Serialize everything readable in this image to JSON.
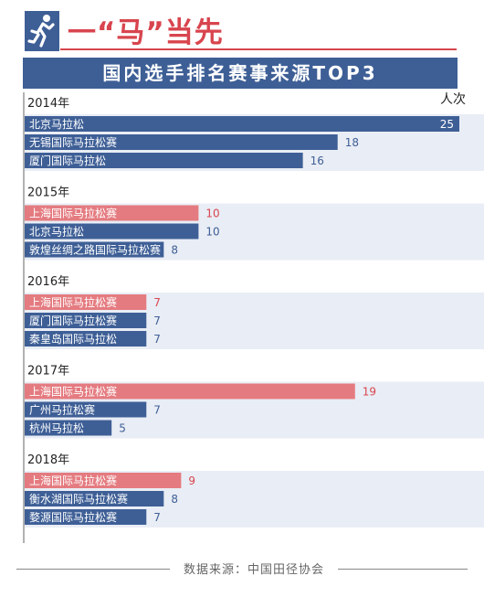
{
  "header": {
    "title": "一“马”当先",
    "icon": "runner-icon"
  },
  "banner": {
    "title": "国内选手排名赛事来源TOP3"
  },
  "footer": {
    "source": "数据来源：中国田径协会"
  },
  "colors": {
    "primary": "#3e5f96",
    "highlight": "#d8454e",
    "highlight_bar": "#e47b80",
    "band": "#e9edf5",
    "axis": "#666666"
  },
  "chart_data": {
    "type": "bar",
    "orientation": "horizontal",
    "unit_label": "人次",
    "xlim": [
      0,
      25
    ],
    "grid": false,
    "groups": [
      {
        "year": "2014年",
        "items": [
          {
            "label": "北京马拉松",
            "value": 25,
            "highlight": false
          },
          {
            "label": "无锡国际马拉松赛",
            "value": 18,
            "highlight": false
          },
          {
            "label": "厦门国际马拉松",
            "value": 16,
            "highlight": false
          }
        ]
      },
      {
        "year": "2015年",
        "items": [
          {
            "label": "上海国际马拉松赛",
            "value": 10,
            "highlight": true
          },
          {
            "label": "北京马拉松",
            "value": 10,
            "highlight": false
          },
          {
            "label": "敦煌丝绸之路国际马拉松赛",
            "value": 8,
            "highlight": false
          }
        ]
      },
      {
        "year": "2016年",
        "items": [
          {
            "label": "上海国际马拉松赛",
            "value": 7,
            "highlight": true
          },
          {
            "label": "厦门国际马拉松赛",
            "value": 7,
            "highlight": false
          },
          {
            "label": "秦皇岛国际马拉松",
            "value": 7,
            "highlight": false
          }
        ]
      },
      {
        "year": "2017年",
        "items": [
          {
            "label": "上海国际马拉松赛",
            "value": 19,
            "highlight": true
          },
          {
            "label": "广州马拉松赛",
            "value": 7,
            "highlight": false
          },
          {
            "label": "杭州马拉松",
            "value": 5,
            "highlight": false
          }
        ]
      },
      {
        "year": "2018年",
        "items": [
          {
            "label": "上海国际马拉松赛",
            "value": 9,
            "highlight": true
          },
          {
            "label": "衡水湖国际马拉松赛",
            "value": 8,
            "highlight": false
          },
          {
            "label": "婺源国际马拉松赛",
            "value": 7,
            "highlight": false
          }
        ]
      }
    ]
  }
}
